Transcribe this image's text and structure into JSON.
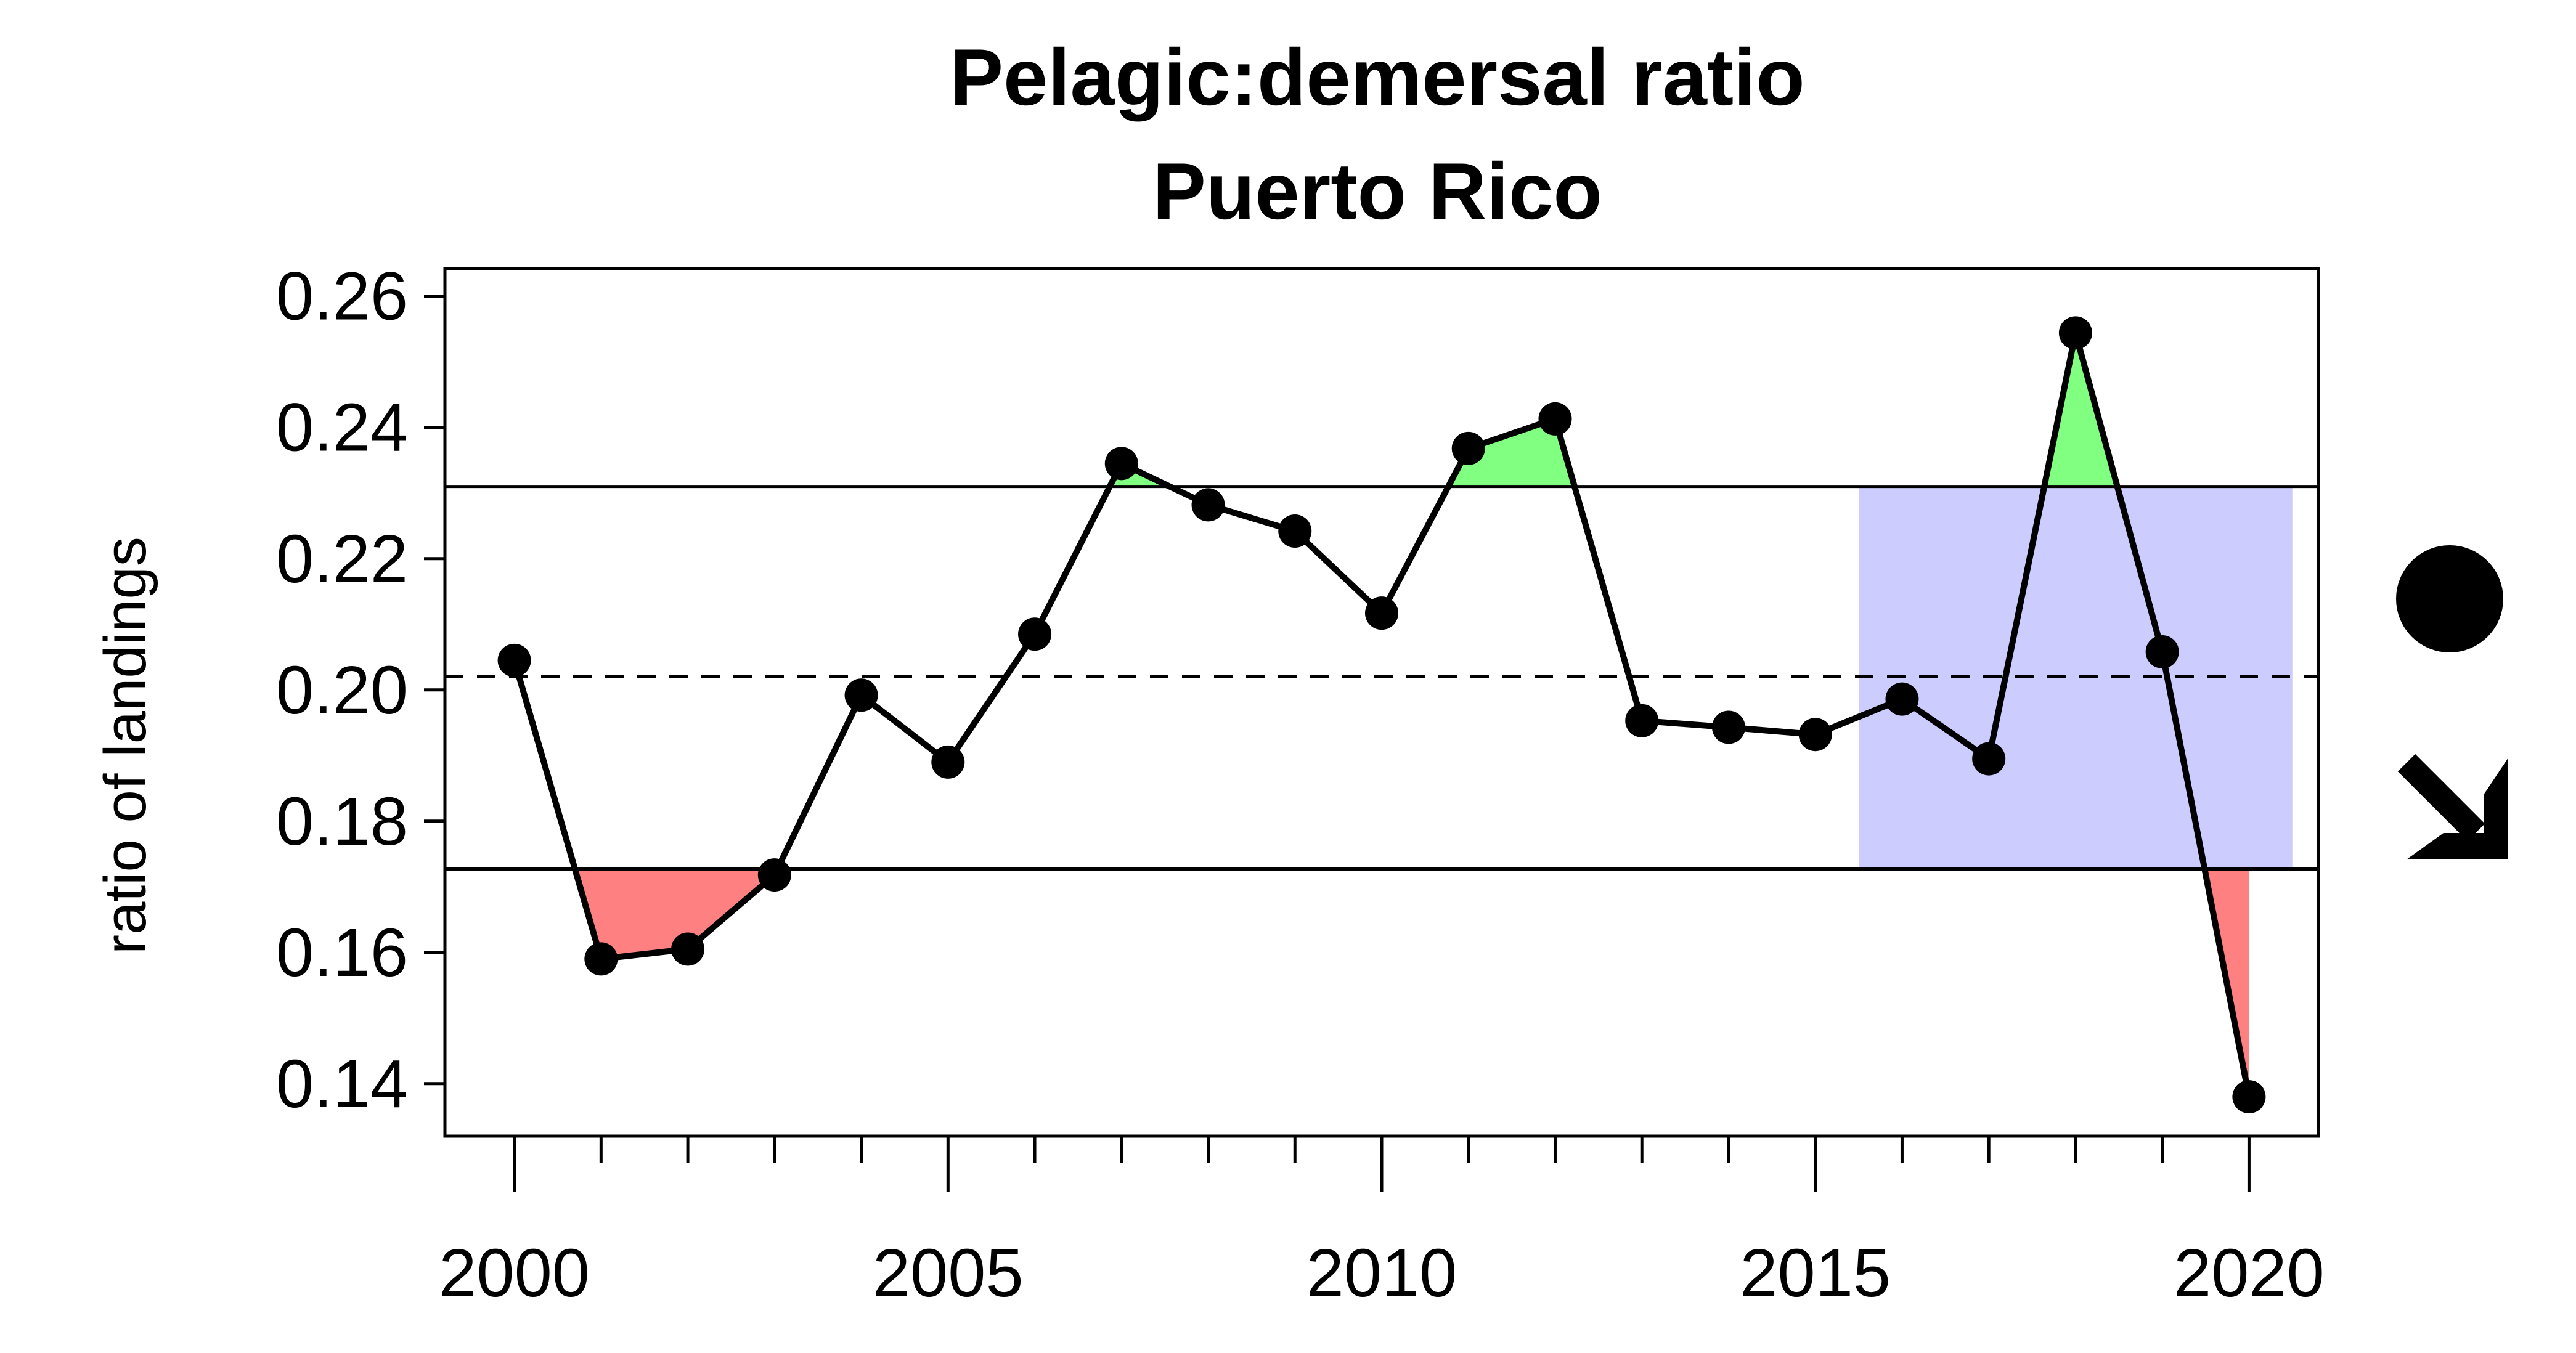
{
  "chart_data": {
    "type": "line",
    "title": "Pelagic:demersal ratio",
    "subtitle": "Puerto Rico",
    "xlabel": "",
    "ylabel": "ratio of landings",
    "x": [
      2000,
      2001,
      2002,
      2003,
      2004,
      2005,
      2006,
      2007,
      2008,
      2009,
      2010,
      2011,
      2012,
      2013,
      2014,
      2015,
      2016,
      2017,
      2018,
      2019,
      2020
    ],
    "series": [
      {
        "values": [
          0.2045,
          0.159,
          0.1605,
          0.1718,
          0.1992,
          0.189,
          0.2085,
          0.2345,
          0.2282,
          0.2242,
          0.2117,
          0.2368,
          0.2413,
          0.1953,
          0.1943,
          0.1932,
          0.1986,
          0.1895,
          0.2544,
          0.2058,
          0.138
        ]
      }
    ],
    "xlim": [
      1999.2,
      2020.8
    ],
    "ylim": [
      0.132,
      0.2642
    ],
    "xticks_major": [
      "2000",
      "2005",
      "2010",
      "2015",
      "2020"
    ],
    "yticks": [
      "0.26",
      "0.24",
      "0.22",
      "0.20",
      "0.18",
      "0.16",
      "0.14"
    ],
    "mean": 0.202,
    "upper_threshold": 0.231,
    "lower_threshold": 0.1727,
    "shaded_range": [
      2015.5,
      2020.5
    ],
    "trend_symbols": [
      "circle",
      "arrow-down-right"
    ],
    "colors": {
      "line": "#000000",
      "above_fill": "#80ff80",
      "below_fill": "#ff8080",
      "recent_window": "#ccccff"
    }
  }
}
